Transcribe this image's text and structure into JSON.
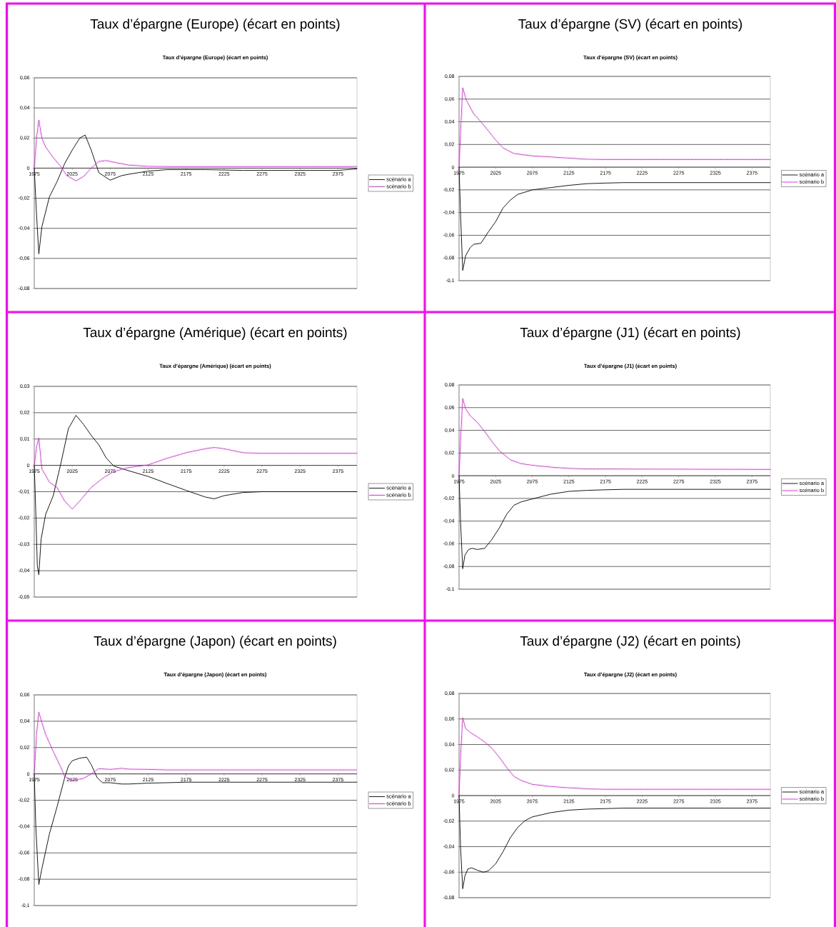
{
  "chart_data": [
    {
      "type": "line",
      "title": "Taux d’épargne (Europe) (écart en points)",
      "subtitle": "Taux d’épargne (Europe) (écart en points)",
      "xlim": [
        1975,
        2400
      ],
      "xticks": [
        1975,
        2025,
        2075,
        2125,
        2175,
        2225,
        2275,
        2325,
        2375
      ],
      "ylim": [
        -0.08,
        0.06
      ],
      "yticks": [
        {
          "value": -0.08,
          "label": "-0,08"
        },
        {
          "value": -0.06,
          "label": "-0,06"
        },
        {
          "value": -0.04,
          "label": "-0,04"
        },
        {
          "value": -0.02,
          "label": "-0,02"
        },
        0,
        {
          "value": 0.02,
          "label": "0,02"
        },
        {
          "value": 0.04,
          "label": "0,04"
        },
        {
          "value": 0.06,
          "label": "0,06"
        }
      ],
      "grid": "y",
      "legend": "right",
      "series": [
        {
          "name": "scénario a",
          "color": "#000000",
          "line_style": "solid",
          "x": [
            1975,
            1978,
            1981,
            1985,
            1995,
            2005,
            2015,
            2025,
            2035,
            2042,
            2050,
            2060,
            2075,
            2090,
            2100,
            2125,
            2150,
            2200,
            2250,
            2300,
            2375,
            2400
          ],
          "values": [
            0,
            -0.031,
            -0.057,
            -0.039,
            -0.019,
            -0.009,
            0.003,
            0.012,
            0.02,
            0.022,
            0.012,
            -0.003,
            -0.008,
            -0.005,
            -0.004,
            -0.002,
            -0.001,
            -0.001,
            -0.0015,
            -0.0015,
            -0.0015,
            -0.0005
          ]
        },
        {
          "name": "scénario b",
          "color": "#ff00ff",
          "line_style": "dotted",
          "x": [
            1975,
            1978,
            1981,
            1985,
            1990,
            2000,
            2010,
            2018,
            2030,
            2040,
            2050,
            2060,
            2070,
            2085,
            2100,
            2125,
            2150,
            2400
          ],
          "values": [
            0,
            0.02,
            0.032,
            0.02,
            0.014,
            0.007,
            0.001,
            -0.005,
            -0.0085,
            -0.0055,
            0,
            0.0044,
            0.005,
            0.0034,
            0.002,
            0.0012,
            0.001,
            0.001
          ]
        }
      ]
    },
    {
      "type": "line",
      "title": "Taux d’épargne (SV) (écart en points)",
      "subtitle": "Taux d’épargne (SV) (écart en points)",
      "xlim": [
        1975,
        2400
      ],
      "xticks": [
        1975,
        2025,
        2075,
        2125,
        2175,
        2225,
        2275,
        2325,
        2375
      ],
      "ylim": [
        -0.1,
        0.08
      ],
      "yticks": [
        {
          "value": -0.1,
          "label": "-0,1"
        },
        {
          "value": -0.08,
          "label": "-0,08"
        },
        {
          "value": -0.06,
          "label": "-0,06"
        },
        {
          "value": -0.04,
          "label": "-0,04"
        },
        {
          "value": -0.02,
          "label": "-0,02"
        },
        0,
        {
          "value": 0.02,
          "label": "0,02"
        },
        {
          "value": 0.04,
          "label": "0,04"
        },
        {
          "value": 0.06,
          "label": "0,06"
        },
        {
          "value": 0.08,
          "label": "0,08"
        }
      ],
      "grid": "y",
      "legend": "right",
      "series": [
        {
          "name": "scénario a",
          "color": "#000000",
          "line_style": "solid",
          "x": [
            1975,
            1977,
            1980,
            1984,
            1990,
            1995,
            2005,
            2015,
            2025,
            2035,
            2045,
            2055,
            2075,
            2100,
            2125,
            2150,
            2175,
            2200,
            2400
          ],
          "values": [
            0,
            -0.041,
            -0.091,
            -0.078,
            -0.071,
            -0.068,
            -0.067,
            -0.057,
            -0.048,
            -0.036,
            -0.029,
            -0.024,
            -0.02,
            -0.018,
            -0.016,
            -0.0145,
            -0.014,
            -0.0136,
            -0.0136
          ]
        },
        {
          "name": "scénario b",
          "color": "#ff00ff",
          "line_style": "dotted",
          "x": [
            1975,
            1977,
            1980,
            1985,
            1995,
            2005,
            2015,
            2025,
            2035,
            2050,
            2075,
            2100,
            2125,
            2150,
            2175,
            2400
          ],
          "values": [
            0,
            0.03,
            0.07,
            0.059,
            0.047,
            0.04,
            0.032,
            0.024,
            0.017,
            0.012,
            0.01,
            0.009,
            0.008,
            0.007,
            0.0067,
            0.0067
          ]
        }
      ]
    },
    {
      "type": "line",
      "title": "Taux d’épargne (Amérique) (écart en points)",
      "subtitle": "Taux d’épargne (Amérique) (écart en points)",
      "xlim": [
        1975,
        2400
      ],
      "xticks": [
        1975,
        2025,
        2075,
        2125,
        2175,
        2225,
        2275,
        2325,
        2375
      ],
      "ylim": [
        -0.05,
        0.03
      ],
      "yticks": [
        {
          "value": -0.05,
          "label": "-0,05"
        },
        {
          "value": -0.04,
          "label": "-0,04"
        },
        {
          "value": -0.03,
          "label": "-0,03"
        },
        {
          "value": -0.02,
          "label": "-0,02"
        },
        {
          "value": -0.01,
          "label": "-0,01"
        },
        0,
        {
          "value": 0.01,
          "label": "0,01"
        },
        {
          "value": 0.02,
          "label": "0,02"
        },
        {
          "value": 0.03,
          "label": "0,03"
        }
      ],
      "grid": "y",
      "legend": "right",
      "series": [
        {
          "name": "scénario a",
          "color": "#000000",
          "line_style": "solid",
          "x": [
            1975,
            1977,
            1979,
            1981,
            1984,
            1990,
            2000,
            2010,
            2020,
            2030,
            2040,
            2050,
            2060,
            2070,
            2080,
            2100,
            2125,
            2150,
            2175,
            2200,
            2212,
            2225,
            2250,
            2275,
            2400
          ],
          "values": [
            0,
            -0.0176,
            -0.038,
            -0.0415,
            -0.028,
            -0.0186,
            -0.0115,
            0.0007,
            0.014,
            0.019,
            0.0155,
            0.0114,
            0.0078,
            0.0027,
            -0.0003,
            -0.0021,
            -0.0042,
            -0.0069,
            -0.0095,
            -0.012,
            -0.0127,
            -0.0115,
            -0.0103,
            -0.01,
            -0.01
          ]
        },
        {
          "name": "scénario b",
          "color": "#ff00ff",
          "line_style": "dotted",
          "x": [
            1975,
            1978,
            1981,
            1985,
            1995,
            2005,
            2015,
            2025,
            2035,
            2050,
            2065,
            2080,
            2100,
            2125,
            2150,
            2175,
            2200,
            2212,
            2225,
            2250,
            2275,
            2400
          ],
          "values": [
            0,
            0.007,
            0.0104,
            -0.0013,
            -0.0064,
            -0.0084,
            -0.0135,
            -0.0166,
            -0.0135,
            -0.0084,
            -0.0049,
            -0.0023,
            -0.0008,
            0.0002,
            0.0027,
            0.0048,
            0.0063,
            0.0068,
            0.0063,
            0.0048,
            0.0046,
            0.0046
          ]
        }
      ]
    },
    {
      "type": "line",
      "title": "Taux d’épargne (J1) (écart en points)",
      "subtitle": "Taux d’épargne (J1) (écart en points)",
      "xlim": [
        1975,
        2400
      ],
      "xticks": [
        1975,
        2025,
        2075,
        2125,
        2175,
        2225,
        2275,
        2325,
        2375
      ],
      "ylim": [
        -0.1,
        0.08
      ],
      "yticks": [
        {
          "value": -0.1,
          "label": "-0,1"
        },
        {
          "value": -0.08,
          "label": "-0,08"
        },
        {
          "value": -0.06,
          "label": "-0,06"
        },
        {
          "value": -0.04,
          "label": "-0,04"
        },
        {
          "value": -0.02,
          "label": "-0,02"
        },
        0,
        {
          "value": 0.02,
          "label": "0,02"
        },
        {
          "value": 0.04,
          "label": "0,04"
        },
        {
          "value": 0.06,
          "label": "0,06"
        },
        {
          "value": 0.08,
          "label": "0,08"
        }
      ],
      "grid": "y",
      "legend": "right",
      "series": [
        {
          "name": "scénario a",
          "color": "#000000",
          "line_style": "solid",
          "x": [
            1975,
            1977,
            1980,
            1983,
            1988,
            1993,
            2000,
            2010,
            2020,
            2030,
            2040,
            2050,
            2060,
            2075,
            2100,
            2125,
            2150,
            2175,
            2200,
            2400
          ],
          "values": [
            0,
            -0.04,
            -0.082,
            -0.07,
            -0.065,
            -0.064,
            -0.065,
            -0.064,
            -0.056,
            -0.046,
            -0.034,
            -0.026,
            -0.023,
            -0.0205,
            -0.0163,
            -0.0138,
            -0.0129,
            -0.0124,
            -0.012,
            -0.012
          ]
        },
        {
          "name": "scénario b",
          "color": "#ff00ff",
          "line_style": "dotted",
          "x": [
            1975,
            1977,
            1980,
            1984,
            1990,
            2000,
            2010,
            2020,
            2030,
            2045,
            2060,
            2075,
            2100,
            2125,
            2150,
            2400
          ],
          "values": [
            0,
            0.03,
            0.068,
            0.059,
            0.053,
            0.047,
            0.039,
            0.03,
            0.022,
            0.014,
            0.0106,
            0.0092,
            0.0076,
            0.0064,
            0.006,
            0.0055
          ]
        }
      ]
    },
    {
      "type": "line",
      "title": "Taux d’épargne (Japon) (écart en points)",
      "subtitle": "Taux d’épargne (Japon) (écart en points)",
      "xlim": [
        1975,
        2400
      ],
      "xticks": [
        1975,
        2025,
        2075,
        2125,
        2175,
        2225,
        2275,
        2325,
        2375
      ],
      "ylim": [
        -0.1,
        0.06
      ],
      "yticks": [
        {
          "value": -0.1,
          "label": "-0,1"
        },
        {
          "value": -0.08,
          "label": "-0,08"
        },
        {
          "value": -0.06,
          "label": "-0,06"
        },
        {
          "value": -0.04,
          "label": "-0,04"
        },
        {
          "value": -0.02,
          "label": "-0,02"
        },
        0,
        {
          "value": 0.02,
          "label": "0,02"
        },
        {
          "value": 0.04,
          "label": "0,04"
        },
        {
          "value": 0.06,
          "label": "0,06"
        }
      ],
      "grid": "y",
      "legend": "right",
      "series": [
        {
          "name": "scénario a",
          "color": "#000000",
          "line_style": "solid",
          "x": [
            1975,
            1977,
            1981,
            1985,
            1995,
            2005,
            2015,
            2020,
            2025,
            2035,
            2044,
            2050,
            2058,
            2065,
            2075,
            2090,
            2100,
            2125,
            2150,
            2175,
            2400
          ],
          "values": [
            0,
            -0.04,
            -0.084,
            -0.072,
            -0.0455,
            -0.025,
            -0.003,
            0.006,
            0.01,
            0.012,
            0.0127,
            0.007,
            -0.003,
            -0.0067,
            -0.0067,
            -0.0077,
            -0.0077,
            -0.007,
            -0.0067,
            -0.0063,
            -0.0063
          ]
        },
        {
          "name": "scénario b",
          "color": "#ff00ff",
          "line_style": "dotted",
          "x": [
            1975,
            1978,
            1981,
            1985,
            1990,
            2000,
            2010,
            2015,
            2025,
            2040,
            2050,
            2060,
            2075,
            2090,
            2100,
            2125,
            2150,
            2400
          ],
          "values": [
            0,
            0.03,
            0.047,
            0.039,
            0.03,
            0.017,
            0.005,
            -0.002,
            -0.005,
            -0.0034,
            0,
            0.004,
            0.0034,
            0.0042,
            0.0036,
            0.0034,
            0.003,
            0.003
          ]
        }
      ]
    },
    {
      "type": "line",
      "title": "Taux d’épargne (J2) (écart en points)",
      "subtitle": "Taux d’épargne (J2) (écart en points)",
      "xlim": [
        1975,
        2400
      ],
      "xticks": [
        1975,
        2025,
        2075,
        2125,
        2175,
        2225,
        2275,
        2325,
        2375
      ],
      "ylim": [
        -0.08,
        0.08
      ],
      "yticks": [
        {
          "value": -0.08,
          "label": "-0,08"
        },
        {
          "value": -0.06,
          "label": "-0,06"
        },
        {
          "value": -0.04,
          "label": "-0,04"
        },
        {
          "value": -0.02,
          "label": "-0,02"
        },
        0,
        {
          "value": 0.02,
          "label": "0,02"
        },
        {
          "value": 0.04,
          "label": "0,04"
        },
        {
          "value": 0.06,
          "label": "0,06"
        },
        {
          "value": 0.08,
          "label": "0,08"
        }
      ],
      "grid": "y",
      "legend": "right",
      "series": [
        {
          "name": "scénario a",
          "color": "#000000",
          "line_style": "solid",
          "x": [
            1975,
            1977,
            1980,
            1983,
            1987,
            1992,
            2000,
            2008,
            2015,
            2025,
            2035,
            2045,
            2055,
            2065,
            2075,
            2100,
            2125,
            2150,
            2175,
            2200,
            2400
          ],
          "values": [
            0,
            -0.04,
            -0.073,
            -0.063,
            -0.0575,
            -0.0566,
            -0.0585,
            -0.06,
            -0.059,
            -0.0534,
            -0.044,
            -0.033,
            -0.025,
            -0.0197,
            -0.0167,
            -0.0134,
            -0.0114,
            -0.0106,
            -0.0102,
            -0.0098,
            -0.0098
          ]
        },
        {
          "name": "scénario b",
          "color": "#ff00ff",
          "line_style": "dotted",
          "x": [
            1975,
            1977,
            1980,
            1984,
            1990,
            2000,
            2010,
            2020,
            2030,
            2040,
            2050,
            2060,
            2075,
            2100,
            2125,
            2150,
            2175,
            2400
          ],
          "values": [
            0,
            0.03,
            0.061,
            0.0525,
            0.0495,
            0.046,
            0.042,
            0.037,
            0.03,
            0.022,
            0.015,
            0.0118,
            0.0088,
            0.0071,
            0.0061,
            0.0053,
            0.0049,
            0.0049
          ]
        }
      ]
    }
  ]
}
